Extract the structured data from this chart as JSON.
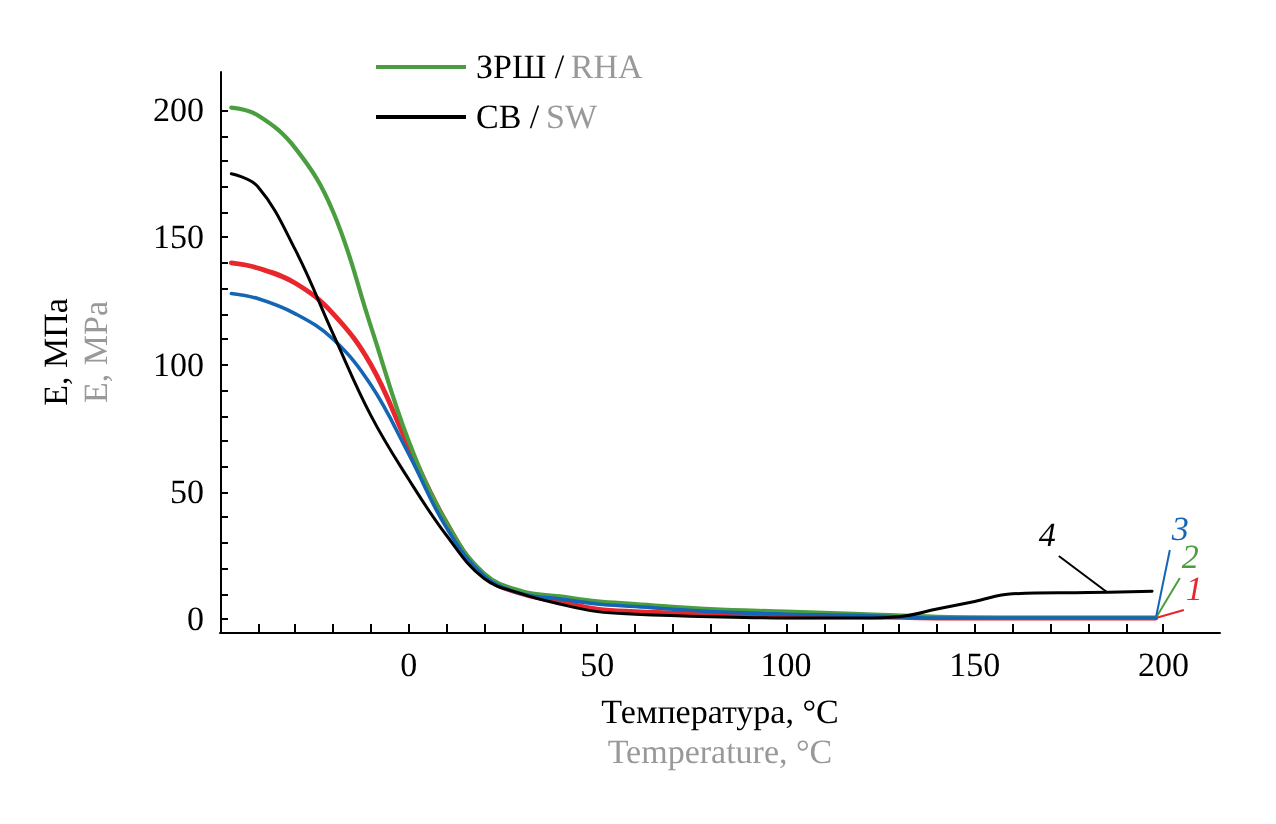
{
  "chart_data": {
    "type": "line",
    "xlabel": "Температура, °C\nTemperature, °C",
    "ylabel": "E, МПа\nE, MPa",
    "xlim": [
      -50,
      215
    ],
    "ylim": [
      -5,
      215
    ],
    "xticks": [
      {
        "value": -40,
        "label": null
      },
      {
        "value": -30,
        "label": null
      },
      {
        "value": -20,
        "label": null
      },
      {
        "value": -10,
        "label": null
      },
      0,
      {
        "value": 10,
        "label": null
      },
      {
        "value": 20,
        "label": null
      },
      {
        "value": 30,
        "label": null
      },
      {
        "value": 40,
        "label": null
      },
      50,
      {
        "value": 60,
        "label": null
      },
      {
        "value": 70,
        "label": null
      },
      {
        "value": 80,
        "label": null
      },
      {
        "value": 90,
        "label": null
      },
      100,
      {
        "value": 110,
        "label": null
      },
      {
        "value": 120,
        "label": null
      },
      {
        "value": 130,
        "label": null
      },
      {
        "value": 140,
        "label": null
      },
      150,
      {
        "value": 160,
        "label": null
      },
      {
        "value": 170,
        "label": null
      },
      {
        "value": 180,
        "label": null
      },
      {
        "value": 190,
        "label": null
      },
      200
    ],
    "yticks": [
      0,
      {
        "value": 10,
        "label": null
      },
      {
        "value": 20,
        "label": null
      },
      {
        "value": 30,
        "label": null
      },
      {
        "value": 40,
        "label": null
      },
      50,
      {
        "value": 60,
        "label": null
      },
      {
        "value": 70,
        "label": null
      },
      {
        "value": 80,
        "label": null
      },
      {
        "value": 90,
        "label": null
      },
      100,
      {
        "value": 110,
        "label": null
      },
      {
        "value": 120,
        "label": null
      },
      {
        "value": 130,
        "label": null
      },
      {
        "value": 140,
        "label": null
      },
      150,
      {
        "value": 160,
        "label": null
      },
      {
        "value": 170,
        "label": null
      },
      {
        "value": 180,
        "label": null
      },
      {
        "value": 190,
        "label": null
      },
      200
    ],
    "grid": false,
    "legend": "top left",
    "marker": "none",
    "line_style": "solid",
    "series": [
      {
        "color": "#e8262b",
        "x": [
          -47,
          -40,
          -30,
          -20,
          -10,
          0,
          10,
          20,
          30,
          40,
          50,
          60,
          80,
          100,
          120,
          140,
          160,
          198
        ],
        "values": [
          140,
          138,
          132,
          120,
          100,
          68,
          38,
          17,
          10,
          7,
          4,
          3,
          2,
          1,
          1,
          0.5,
          0.5,
          0.5
        ]
      },
      {
        "name": "ЗРШ / RHA",
        "color": "#4a9e3f",
        "x": [
          -47,
          -40,
          -30,
          -20,
          -10,
          0,
          10,
          20,
          30,
          40,
          50,
          60,
          80,
          100,
          120,
          140,
          160,
          198
        ],
        "values": [
          201,
          198,
          185,
          160,
          115,
          70,
          38,
          18,
          11,
          9,
          7,
          6,
          4,
          3,
          2,
          1,
          0.5,
          0.5
        ]
      },
      {
        "color": "#1565b5",
        "x": [
          -47,
          -40,
          -30,
          -20,
          -10,
          0,
          10,
          20,
          30,
          40,
          50,
          60,
          80,
          100,
          120,
          140,
          160,
          198
        ],
        "values": [
          128,
          126,
          120,
          110,
          92,
          65,
          36,
          17,
          10,
          8,
          6,
          5,
          3,
          2,
          1.5,
          0.5,
          0.5,
          0.5
        ]
      },
      {
        "name": "СВ / SW",
        "color": "#000000",
        "x": [
          -47,
          -40,
          -30,
          -20,
          -10,
          0,
          10,
          20,
          30,
          40,
          50,
          60,
          80,
          100,
          120,
          130,
          140,
          150,
          160,
          180,
          197
        ],
        "values": [
          175,
          170,
          145,
          112,
          80,
          55,
          33,
          16,
          10,
          6,
          3,
          2,
          1,
          0.5,
          0.5,
          1,
          4,
          7,
          10,
          10.5,
          11
        ]
      }
    ],
    "annotations": [
      "1",
      "2",
      "3",
      {
        "text": "4",
        "x": 185,
        "y": 10.7
      }
    ]
  }
}
